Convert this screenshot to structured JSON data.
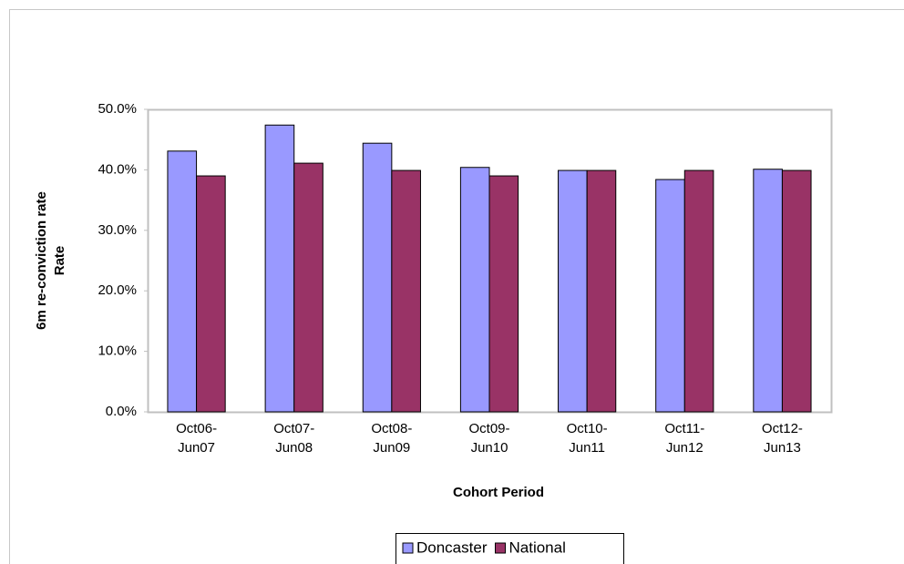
{
  "chart_data": {
    "type": "bar",
    "ylabel": [
      "6m re-conviction rate",
      "Rate"
    ],
    "xlabel": "Cohort  Period",
    "categories": [
      [
        "Oct06-",
        "Jun07"
      ],
      [
        "Oct07-",
        "Jun08"
      ],
      [
        "Oct08-",
        "Jun09"
      ],
      [
        "Oct09-",
        "Jun10"
      ],
      [
        "Oct10-",
        "Jun11"
      ],
      [
        "Oct11-",
        "Jun12"
      ],
      [
        "Oct12-",
        "Jun13"
      ]
    ],
    "series": [
      {
        "name": "Doncaster",
        "color": "#9999ff",
        "values": [
          43.1,
          47.4,
          44.4,
          40.4,
          39.9,
          38.4,
          40.1
        ]
      },
      {
        "name": "National",
        "color": "#993366",
        "values": [
          39.0,
          41.1,
          39.9,
          39.0,
          39.9,
          39.9,
          39.9
        ]
      }
    ],
    "ylim": [
      0,
      50
    ],
    "yticks": [
      {
        "value": 0,
        "label": "0.0%"
      },
      {
        "value": 10,
        "label": "10.0%"
      },
      {
        "value": 20,
        "label": "20.0%"
      },
      {
        "value": 30,
        "label": "30.0%"
      },
      {
        "value": 40,
        "label": "40.0%"
      },
      {
        "value": 50,
        "label": "50.0%"
      }
    ],
    "grid": false,
    "legend": "bottom"
  }
}
